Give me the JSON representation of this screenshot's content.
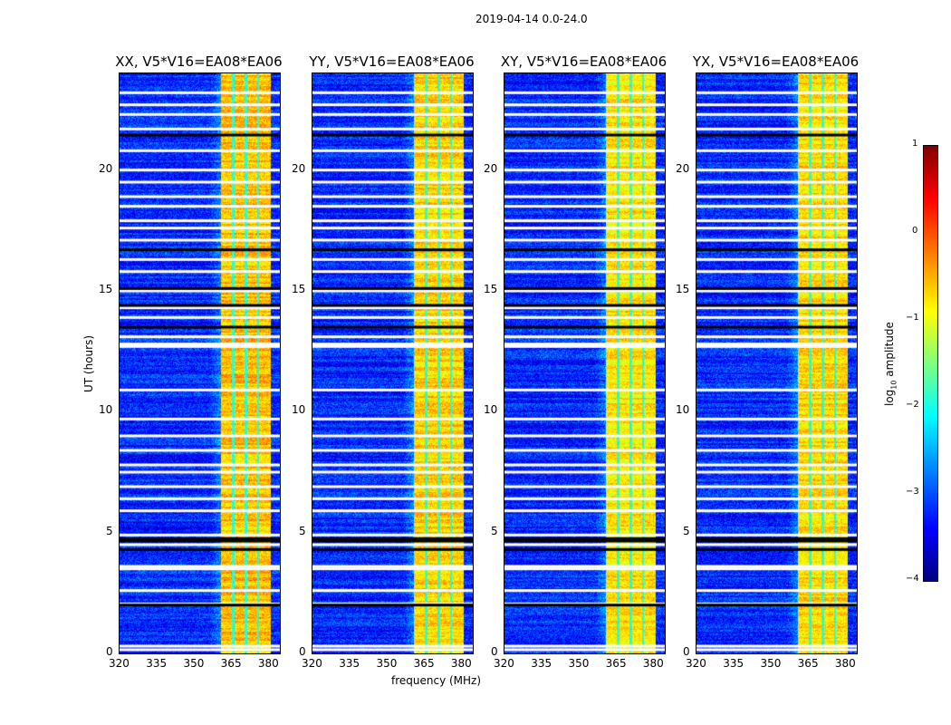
{
  "suptitle": "2019-04-14 0.0-24.0",
  "xlabel": "frequency (MHz)",
  "ylabel": "UT (hours)",
  "colorbar": {
    "label_prefix": "log",
    "label_sub": "10",
    "label_suffix": " amplitude",
    "ticks": [
      "1",
      "0",
      "−1",
      "−2",
      "−3",
      "−4"
    ],
    "range": [
      -4,
      1
    ]
  },
  "colors": {
    "cmap": "jet"
  },
  "chart_data": {
    "type": "heatmap",
    "panels": [
      {
        "title": "XX, V5*V16=EA08*EA06",
        "band_level": -0.7
      },
      {
        "title": "YY, V5*V16=EA08*EA06",
        "band_level": -0.8
      },
      {
        "title": "XY, V5*V16=EA08*EA06",
        "band_level": -0.9
      },
      {
        "title": "YX, V5*V16=EA08*EA06",
        "band_level": -0.85
      }
    ],
    "xlim": [
      320,
      384.4
    ],
    "ylim": [
      0,
      24
    ],
    "xticks": [
      "320",
      "335",
      "350",
      "365",
      "380"
    ],
    "xtick_values": [
      320,
      335,
      350,
      365,
      380
    ],
    "yticks": [
      "0",
      "5",
      "10",
      "15",
      "20"
    ],
    "ytick_values": [
      0,
      5,
      10,
      15,
      20
    ],
    "background_level": -3.2,
    "rfi_band_mhz": [
      360.7,
      380.7
    ],
    "band_gaps_mhz": [
      365.5,
      370.5,
      375.5
    ],
    "flagged_rows_white_hours": [
      0.15,
      0.3,
      2.05,
      2.6,
      3.5,
      3.6,
      4.5,
      4.9,
      5.9,
      6.4,
      6.9,
      7.5,
      7.8,
      8.4,
      9.0,
      9.7,
      10.9,
      12.7,
      12.8,
      13.1,
      13.9,
      14.3,
      15.0,
      15.8,
      16.3,
      17.1,
      17.6,
      17.9,
      18.5,
      18.9,
      19.5,
      20.0,
      20.8,
      21.7,
      22.3,
      22.7,
      23.2
    ],
    "flagged_rows_black_hours": [
      2.0,
      4.3,
      4.65,
      4.75,
      13.5,
      14.4,
      15.1,
      16.7,
      21.45
    ]
  }
}
